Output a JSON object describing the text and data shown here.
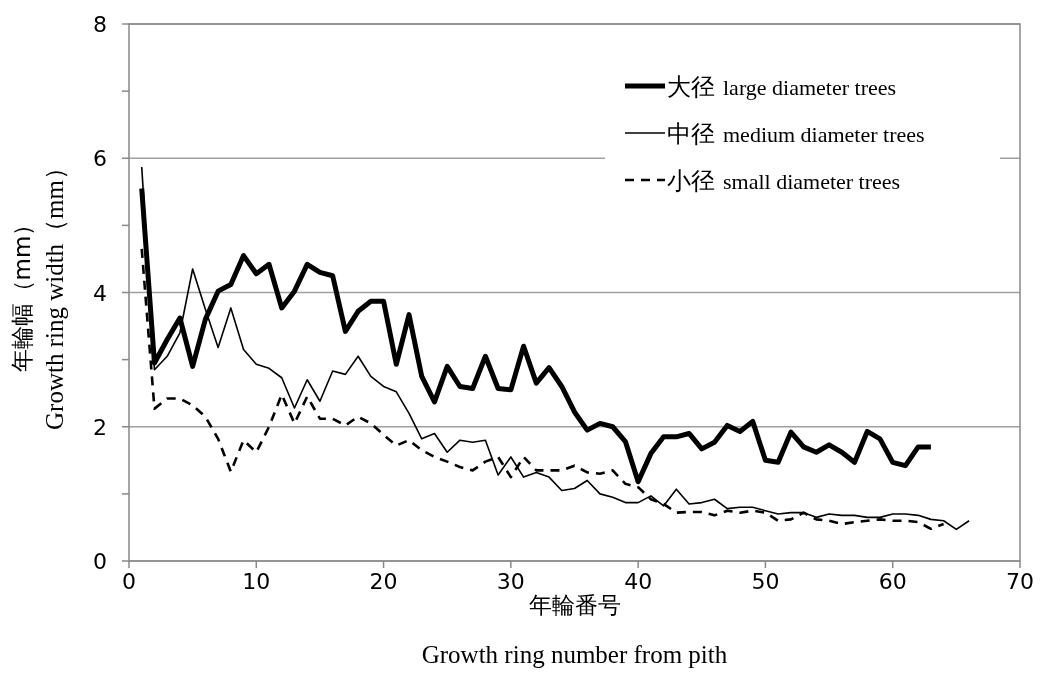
{
  "chart_data": {
    "type": "line",
    "xlabel": "年輪番号\nGrowth ring number from pith",
    "ylabel": "年輪幅（mm）\nGrowth ring width（mm）",
    "xlim": [
      0,
      70
    ],
    "xticks": [
      0,
      10,
      20,
      30,
      40,
      50,
      60,
      70
    ],
    "ylim": [
      0,
      8
    ],
    "yticks": [
      0,
      {
        "value": 1,
        "label": null
      },
      2,
      {
        "value": 3,
        "label": null
      },
      4,
      {
        "value": 5,
        "label": null
      },
      6,
      {
        "value": 7,
        "label": null
      },
      8
    ],
    "grid": "y",
    "legend": "top right",
    "marker": "none",
    "series": [
      {
        "name": "大径 large diameter trees",
        "color": "#000000",
        "line_style": "solid",
        "x": [
          1,
          2,
          3,
          4,
          5,
          6,
          7,
          8,
          9,
          10,
          11,
          12,
          13,
          14,
          15,
          16,
          17,
          18,
          19,
          20,
          21,
          22,
          23,
          24,
          25,
          26,
          27,
          28,
          29,
          30,
          31,
          32,
          33,
          34,
          35,
          36,
          37,
          38,
          39,
          40,
          41,
          42,
          43,
          44,
          45,
          46,
          47,
          48,
          49,
          50,
          51,
          52,
          53,
          54,
          55,
          56,
          57,
          58,
          59,
          60,
          61,
          62,
          63
        ],
        "values": [
          5.55,
          2.95,
          3.3,
          3.62,
          2.9,
          3.6,
          4.02,
          4.12,
          4.55,
          4.28,
          4.42,
          3.77,
          4.02,
          4.42,
          4.3,
          4.25,
          3.42,
          3.72,
          3.87,
          3.87,
          2.93,
          3.67,
          2.75,
          2.37,
          2.9,
          2.6,
          2.57,
          3.05,
          2.57,
          2.55,
          3.2,
          2.65,
          2.88,
          2.6,
          2.22,
          1.95,
          2.05,
          2.0,
          1.78,
          1.18,
          1.6,
          1.85,
          1.85,
          1.9,
          1.67,
          1.77,
          2.02,
          1.93,
          2.08,
          1.5,
          1.47,
          1.92,
          1.7,
          1.62,
          1.73,
          1.62,
          1.47,
          1.93,
          1.82,
          1.47,
          1.42,
          1.7,
          1.7
        ]
      },
      {
        "name": "中径 medium diameter trees",
        "color": "#000000",
        "line_style": "solid",
        "x": [
          1,
          2,
          3,
          4,
          5,
          6,
          7,
          8,
          9,
          10,
          11,
          12,
          13,
          14,
          15,
          16,
          17,
          18,
          19,
          20,
          21,
          22,
          23,
          24,
          25,
          26,
          27,
          28,
          29,
          30,
          31,
          32,
          33,
          34,
          35,
          36,
          37,
          38,
          39,
          40,
          41,
          42,
          43,
          44,
          45,
          46,
          47,
          48,
          49,
          50,
          51,
          52,
          53,
          54,
          55,
          56,
          57,
          58,
          59,
          60,
          61,
          62,
          63,
          64,
          65,
          66
        ],
        "values": [
          5.87,
          2.85,
          3.05,
          3.4,
          4.35,
          3.75,
          3.18,
          3.77,
          3.15,
          2.93,
          2.87,
          2.73,
          2.28,
          2.7,
          2.38,
          2.83,
          2.78,
          3.05,
          2.75,
          2.6,
          2.52,
          2.2,
          1.82,
          1.9,
          1.62,
          1.8,
          1.77,
          1.8,
          1.28,
          1.55,
          1.25,
          1.32,
          1.25,
          1.05,
          1.08,
          1.2,
          1.0,
          0.95,
          0.87,
          0.87,
          0.97,
          0.82,
          1.07,
          0.85,
          0.87,
          0.92,
          0.78,
          0.8,
          0.8,
          0.75,
          0.7,
          0.72,
          0.72,
          0.65,
          0.7,
          0.68,
          0.68,
          0.65,
          0.65,
          0.7,
          0.7,
          0.68,
          0.62,
          0.6,
          0.47,
          0.6
        ]
      },
      {
        "name": "小径 small diameter trees",
        "color": "#000000",
        "line_style": "dashed",
        "x": [
          1,
          2,
          3,
          4,
          5,
          6,
          7,
          8,
          9,
          10,
          11,
          12,
          13,
          14,
          15,
          16,
          17,
          18,
          19,
          20,
          21,
          22,
          23,
          24,
          25,
          26,
          27,
          28,
          29,
          30,
          31,
          32,
          33,
          34,
          35,
          36,
          37,
          38,
          39,
          40,
          41,
          42,
          43,
          44,
          45,
          46,
          47,
          48,
          49,
          50,
          51,
          52,
          53,
          54,
          55,
          56,
          57,
          58,
          59,
          60,
          61,
          62,
          63,
          64
        ],
        "values": [
          4.65,
          2.27,
          2.42,
          2.42,
          2.32,
          2.15,
          1.82,
          1.33,
          1.8,
          1.62,
          2.0,
          2.48,
          2.05,
          2.45,
          2.12,
          2.12,
          2.02,
          2.15,
          2.05,
          1.88,
          1.72,
          1.8,
          1.65,
          1.55,
          1.48,
          1.4,
          1.35,
          1.48,
          1.55,
          1.25,
          1.55,
          1.35,
          1.35,
          1.35,
          1.42,
          1.32,
          1.3,
          1.35,
          1.15,
          1.1,
          0.92,
          0.85,
          0.72,
          0.73,
          0.73,
          0.68,
          0.75,
          0.72,
          0.75,
          0.72,
          0.6,
          0.62,
          0.72,
          0.62,
          0.6,
          0.55,
          0.58,
          0.6,
          0.62,
          0.6,
          0.6,
          0.58,
          0.48,
          0.55
        ]
      }
    ]
  }
}
